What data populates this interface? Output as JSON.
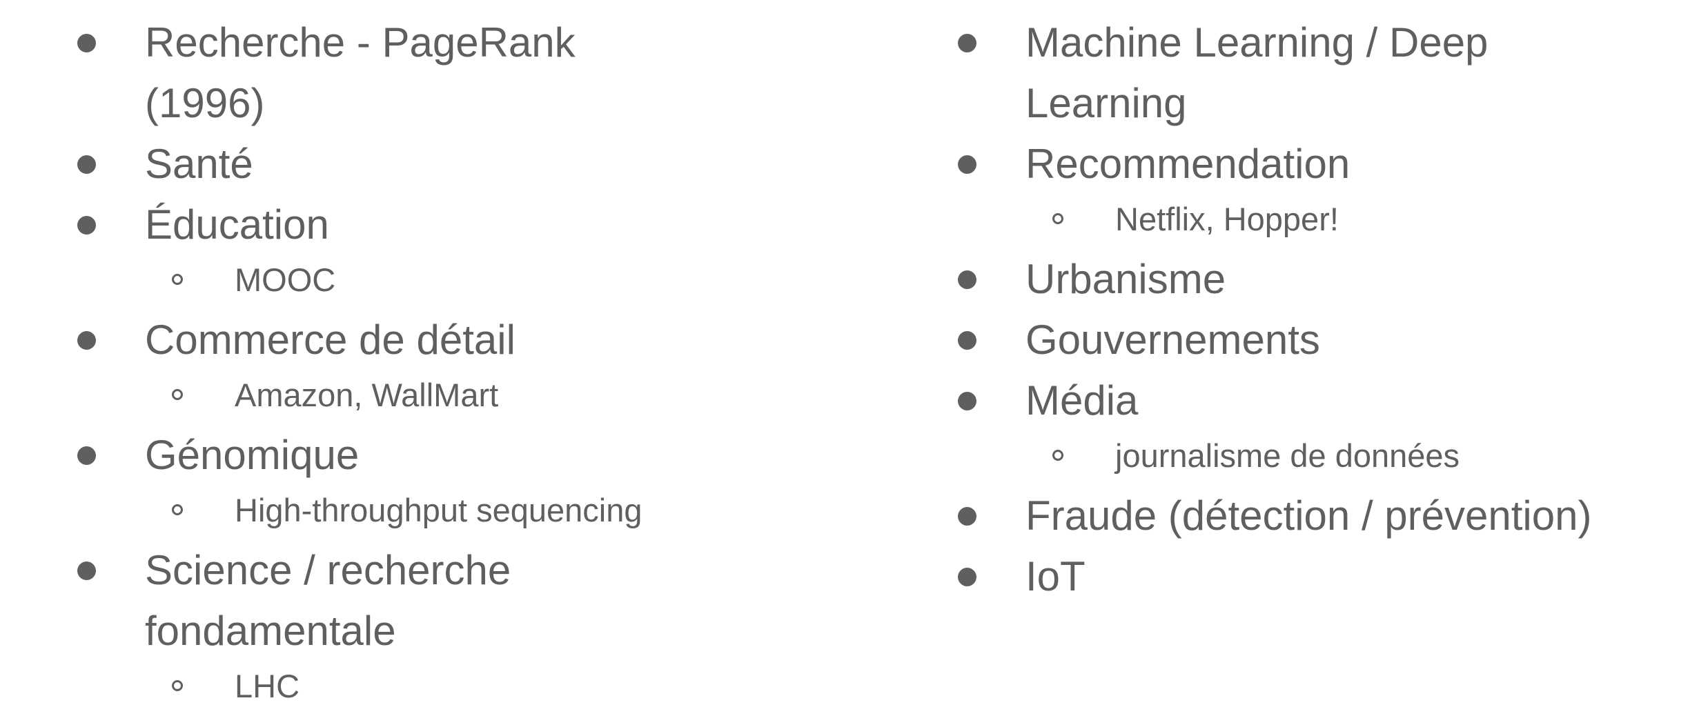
{
  "left_column": [
    {
      "label": "Recherche - PageRank (1996)",
      "sub": []
    },
    {
      "label": "Santé",
      "sub": []
    },
    {
      "label": "Éducation",
      "sub": [
        "MOOC"
      ]
    },
    {
      "label": "Commerce de détail",
      "sub": [
        "Amazon, WallMart"
      ]
    },
    {
      "label": "Génomique",
      "sub": [
        "High-throughput sequencing"
      ]
    },
    {
      "label": "Science / recherche fondamentale",
      "sub": [
        "LHC"
      ]
    }
  ],
  "right_column": [
    {
      "label": "Machine Learning / Deep Learning",
      "sub": []
    },
    {
      "label": "Recommendation",
      "sub": [
        "Netflix, Hopper!"
      ]
    },
    {
      "label": "Urbanisme",
      "sub": []
    },
    {
      "label": "Gouvernements",
      "sub": []
    },
    {
      "label": "Média",
      "sub": [
        "journalisme de données"
      ]
    },
    {
      "label": "Fraude (détection / prévention)",
      "sub": []
    },
    {
      "label": "IoT",
      "sub": []
    }
  ]
}
